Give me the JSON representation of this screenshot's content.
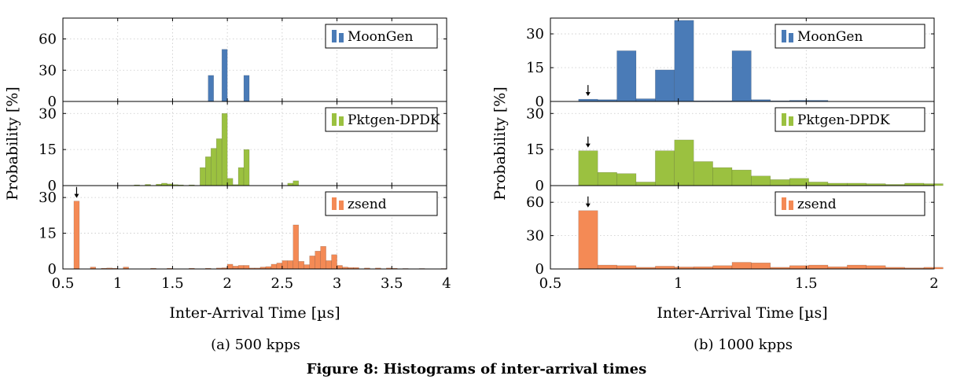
{
  "caption": "Figure 8: Histograms of inter-arrival times",
  "colors": {
    "MoonGen": "#4a7bb7",
    "Pktgen-DPDK": "#9bc140",
    "zsend": "#f48a55"
  },
  "chart_data": [
    {
      "type": "bar",
      "subcaption": "(a) 500 kpps",
      "xlabel": "Inter-Arrival Time [µs]",
      "ylabel": "Probability [%]",
      "xlim": [
        0.5,
        4
      ],
      "xticks": [
        0.5,
        1,
        1.5,
        2,
        2.5,
        3,
        3.5,
        4
      ],
      "xtick_labels": [
        "0.5",
        "1",
        "1.5",
        "2",
        "2.5",
        "3",
        "3.5",
        "4"
      ],
      "bin_width": 0.05,
      "grid": true,
      "legend_position": "top-right",
      "panels": [
        {
          "series": "MoonGen",
          "ylim": [
            0,
            80
          ],
          "yticks": [
            0,
            30,
            60
          ],
          "bins": [
            [
              1.85,
              25
            ],
            [
              1.975,
              50
            ],
            [
              2.175,
              25
            ]
          ]
        },
        {
          "series": "Pktgen-DPDK",
          "ylim": [
            0,
            35
          ],
          "yticks": [
            0,
            15,
            30
          ],
          "bins": [
            [
              1.175,
              0.3
            ],
            [
              1.275,
              0.5
            ],
            [
              1.375,
              0.6
            ],
            [
              1.425,
              1
            ],
            [
              1.475,
              0.7
            ],
            [
              1.525,
              0.4
            ],
            [
              1.575,
              0.3
            ],
            [
              1.675,
              0.3
            ],
            [
              1.775,
              7.5
            ],
            [
              1.825,
              12
            ],
            [
              1.875,
              15.5
            ],
            [
              1.925,
              19.5
            ],
            [
              1.975,
              30
            ],
            [
              2.025,
              3
            ],
            [
              2.075,
              0.4
            ],
            [
              2.125,
              7.5
            ],
            [
              2.175,
              15
            ],
            [
              2.575,
              1
            ],
            [
              2.625,
              2
            ]
          ]
        },
        {
          "series": "zsend",
          "ylim": [
            0,
            35
          ],
          "yticks": [
            0,
            15,
            30
          ],
          "marker_at": 0.625,
          "bins": [
            [
              0.625,
              28.5
            ],
            [
              0.775,
              0.8
            ],
            [
              0.875,
              0.3
            ],
            [
              0.925,
              0.4
            ],
            [
              0.975,
              0.3
            ],
            [
              1.075,
              0.8
            ],
            [
              1.325,
              0.3
            ],
            [
              1.475,
              0.3
            ],
            [
              1.675,
              0.3
            ],
            [
              1.825,
              0.3
            ],
            [
              1.925,
              0.4
            ],
            [
              1.975,
              0.5
            ],
            [
              2.025,
              2
            ],
            [
              2.075,
              1.2
            ],
            [
              2.125,
              1.5
            ],
            [
              2.175,
              1.5
            ],
            [
              2.225,
              0.4
            ],
            [
              2.275,
              0.4
            ],
            [
              2.325,
              0.8
            ],
            [
              2.375,
              1
            ],
            [
              2.425,
              2
            ],
            [
              2.475,
              2.5
            ],
            [
              2.525,
              3.5
            ],
            [
              2.575,
              3.5
            ],
            [
              2.625,
              18.5
            ],
            [
              2.675,
              3.2
            ],
            [
              2.725,
              1.8
            ],
            [
              2.775,
              5.5
            ],
            [
              2.825,
              7.5
            ],
            [
              2.875,
              9.5
            ],
            [
              2.925,
              3.5
            ],
            [
              2.975,
              6
            ],
            [
              3.025,
              1.5
            ],
            [
              3.075,
              0.8
            ],
            [
              3.125,
              0.6
            ],
            [
              3.175,
              0.6
            ],
            [
              3.275,
              0.4
            ],
            [
              3.375,
              0.4
            ],
            [
              3.475,
              0.4
            ],
            [
              3.525,
              0.3
            ],
            [
              3.625,
              0.2
            ],
            [
              3.775,
              0.2
            ],
            [
              3.975,
              0.2
            ]
          ]
        }
      ]
    },
    {
      "type": "bar",
      "subcaption": "(b) 1000 kpps",
      "xlabel": "Inter-Arrival Time [µs]",
      "ylabel": "Probability [%]",
      "xlim": [
        0.5,
        2
      ],
      "xticks": [
        0.5,
        1,
        1.5,
        2
      ],
      "xtick_labels": [
        "0.5",
        "1",
        "1.5",
        "2"
      ],
      "bin_width": 0.075,
      "grid": true,
      "legend_position": "top-right",
      "panels": [
        {
          "series": "MoonGen",
          "ylim": [
            0,
            37
          ],
          "yticks": [
            0,
            15,
            30
          ],
          "marker_at": 0.647,
          "bins": [
            [
              0.6475,
              1
            ],
            [
              0.7225,
              0.8
            ],
            [
              0.7975,
              22.5
            ],
            [
              0.8725,
              1.2
            ],
            [
              0.9475,
              14
            ],
            [
              1.0225,
              36
            ],
            [
              1.0975,
              0.3
            ],
            [
              1.1725,
              0.3
            ],
            [
              1.2475,
              22.5
            ],
            [
              1.3225,
              0.8
            ],
            [
              1.3975,
              0.3
            ],
            [
              1.4725,
              0.5
            ],
            [
              1.5475,
              0.5
            ]
          ]
        },
        {
          "series": "Pktgen-DPDK",
          "ylim": [
            0,
            35
          ],
          "yticks": [
            0,
            15,
            30
          ],
          "marker_at": 0.647,
          "bins": [
            [
              0.6475,
              14.5
            ],
            [
              0.7225,
              5.5
            ],
            [
              0.7975,
              5
            ],
            [
              0.8725,
              1.5
            ],
            [
              0.9475,
              14.5
            ],
            [
              1.0225,
              19
            ],
            [
              1.0975,
              10
            ],
            [
              1.1725,
              7.5
            ],
            [
              1.2475,
              6.5
            ],
            [
              1.3225,
              4
            ],
            [
              1.3975,
              2.5
            ],
            [
              1.4725,
              3
            ],
            [
              1.5475,
              1.5
            ],
            [
              1.6225,
              1
            ],
            [
              1.6975,
              1
            ],
            [
              1.7725,
              0.8
            ],
            [
              1.8475,
              0.5
            ],
            [
              1.9225,
              1
            ],
            [
              1.9975,
              0.8
            ]
          ]
        },
        {
          "series": "zsend",
          "ylim": [
            0,
            75
          ],
          "yticks": [
            0,
            30,
            60
          ],
          "marker_at": 0.647,
          "bins": [
            [
              0.6475,
              52.5
            ],
            [
              0.7225,
              3.5
            ],
            [
              0.7975,
              3
            ],
            [
              0.8725,
              1.5
            ],
            [
              0.9475,
              2.5
            ],
            [
              1.0225,
              1.8
            ],
            [
              1.0975,
              2
            ],
            [
              1.1725,
              3
            ],
            [
              1.2475,
              6
            ],
            [
              1.3225,
              5.5
            ],
            [
              1.3975,
              1.5
            ],
            [
              1.4725,
              3
            ],
            [
              1.5475,
              3.5
            ],
            [
              1.6225,
              2
            ],
            [
              1.6975,
              3.5
            ],
            [
              1.7725,
              3
            ],
            [
              1.8475,
              1.5
            ],
            [
              1.9225,
              1
            ],
            [
              1.9975,
              1.5
            ]
          ]
        }
      ]
    }
  ]
}
